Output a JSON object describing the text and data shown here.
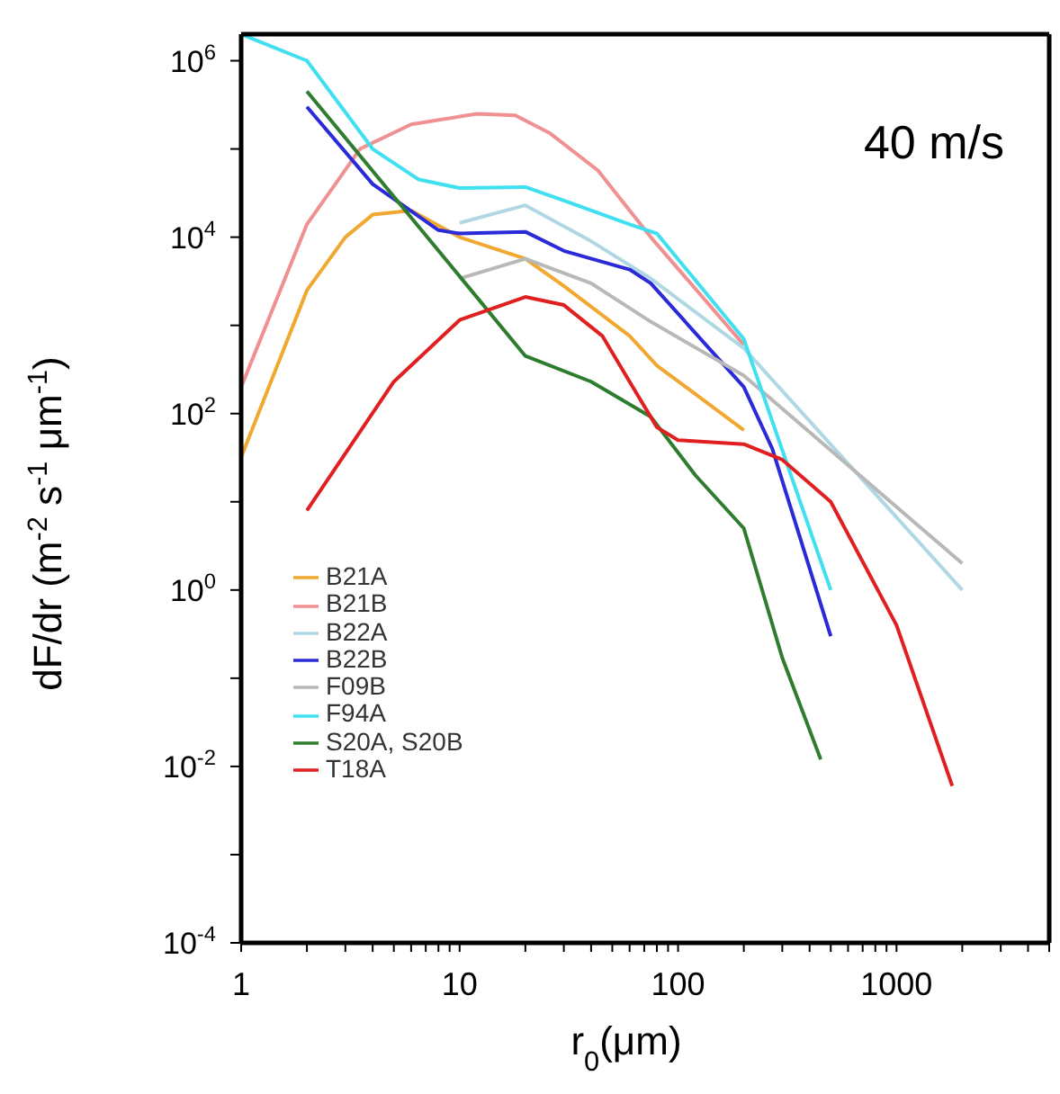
{
  "chart_data": {
    "type": "line",
    "xlabel": "r$_{0}$(μm)",
    "ylabel": "dF/dr (m$^{-2}$ s$^{-1}$ μm$^{-1}$)",
    "annotations": [
      "40 m/s"
    ],
    "log": "xy",
    "xlim": [
      1,
      5000
    ],
    "ylim": [
      0.0001,
      2000000
    ],
    "xticks": [
      1,
      {
        "value": 2,
        "label": null
      },
      {
        "value": 3,
        "label": null
      },
      {
        "value": 4,
        "label": null
      },
      {
        "value": 5,
        "label": null
      },
      {
        "value": 6,
        "label": null
      },
      {
        "value": 7,
        "label": null
      },
      {
        "value": 8,
        "label": null
      },
      {
        "value": 9,
        "label": null
      },
      10,
      {
        "value": 20,
        "label": null
      },
      {
        "value": 30,
        "label": null
      },
      {
        "value": 40,
        "label": null
      },
      {
        "value": 50,
        "label": null
      },
      {
        "value": 60,
        "label": null
      },
      {
        "value": 70,
        "label": null
      },
      {
        "value": 80,
        "label": null
      },
      {
        "value": 90,
        "label": null
      },
      100,
      {
        "value": 200,
        "label": null
      },
      {
        "value": 300,
        "label": null
      },
      {
        "value": 400,
        "label": null
      },
      {
        "value": 500,
        "label": null
      },
      {
        "value": 600,
        "label": null
      },
      {
        "value": 700,
        "label": null
      },
      {
        "value": 800,
        "label": null
      },
      {
        "value": 900,
        "label": null
      },
      1000,
      {
        "value": 2000,
        "label": null
      },
      {
        "value": 3000,
        "label": null
      },
      {
        "value": 4000,
        "label": null
      },
      {
        "value": 5000,
        "label": null
      }
    ],
    "yticks": [
      {
        "value": 0.0001,
        "label": "10$^{-4}$"
      },
      {
        "value": 0.001,
        "label": null
      },
      {
        "value": 0.01,
        "label": "10$^{-2}$"
      },
      {
        "value": 0.1,
        "label": null
      },
      {
        "value": 1,
        "label": "10$^{0}$"
      },
      {
        "value": 10,
        "label": null
      },
      {
        "value": 100,
        "label": "10$^{2}$"
      },
      {
        "value": 1000,
        "label": null
      },
      {
        "value": 10000,
        "label": "10$^{4}$"
      },
      {
        "value": 100000,
        "label": null
      },
      {
        "value": 1000000,
        "label": "10$^{6}$"
      }
    ],
    "legend": "bottom left",
    "marker": "none",
    "series": [
      {
        "name": "B21A",
        "color": "#f0a830",
        "x": [
          1,
          2,
          3,
          4,
          6,
          10,
          20,
          30,
          60,
          80,
          200
        ],
        "values": [
          32,
          2500,
          10000,
          18000,
          20000,
          10000,
          5700,
          2800,
          760,
          350,
          65
        ]
      },
      {
        "name": "B21B",
        "color": "#f09090",
        "x": [
          1,
          2,
          3.5,
          6,
          12,
          18,
          26,
          43,
          75,
          200
        ],
        "values": [
          200,
          14000,
          100000,
          190000,
          250000,
          240000,
          150000,
          57000,
          10000,
          600
        ]
      },
      {
        "name": "B22A",
        "color": "#b0d8e4",
        "x": [
          10,
          20,
          40,
          75,
          200,
          2000
        ],
        "values": [
          14500,
          23000,
          9000,
          3400,
          550,
          1
        ]
      },
      {
        "name": "B22B",
        "color": "#2a2ad8",
        "x": [
          2,
          4,
          8,
          10,
          20,
          30,
          60,
          75,
          200,
          270,
          500
        ],
        "values": [
          300000,
          40000,
          12000,
          11000,
          11500,
          7000,
          4300,
          3000,
          200,
          40,
          0.3
        ]
      },
      {
        "name": "F09B",
        "color": "#b8b8b8",
        "x": [
          10,
          20,
          40,
          75,
          200,
          2000
        ],
        "values": [
          3400,
          5700,
          3000,
          1100,
          270,
          2
        ]
      },
      {
        "name": "F94A",
        "color": "#40e0f0",
        "x": [
          1,
          2,
          4,
          6.5,
          10,
          20,
          30,
          60,
          80,
          200,
          500
        ],
        "values": [
          2000000,
          1000000,
          100000,
          45000,
          36000,
          37000,
          26000,
          14000,
          11000,
          700,
          1
        ]
      },
      {
        "name": "S20A, S20B",
        "color": "#2e7d2e",
        "x": [
          2,
          20,
          40,
          75,
          120,
          200,
          300,
          450
        ],
        "values": [
          450000,
          450,
          230,
          92,
          20,
          5,
          0.17,
          0.012
        ]
      },
      {
        "name": "T18A",
        "color": "#e02020",
        "x": [
          2,
          5,
          10,
          20,
          30,
          45,
          60,
          80,
          100,
          200,
          300,
          500,
          1000,
          1800
        ],
        "values": [
          8,
          230,
          1150,
          2100,
          1700,
          760,
          230,
          70,
          50,
          45,
          30,
          10,
          0.4,
          0.006
        ]
      }
    ]
  }
}
